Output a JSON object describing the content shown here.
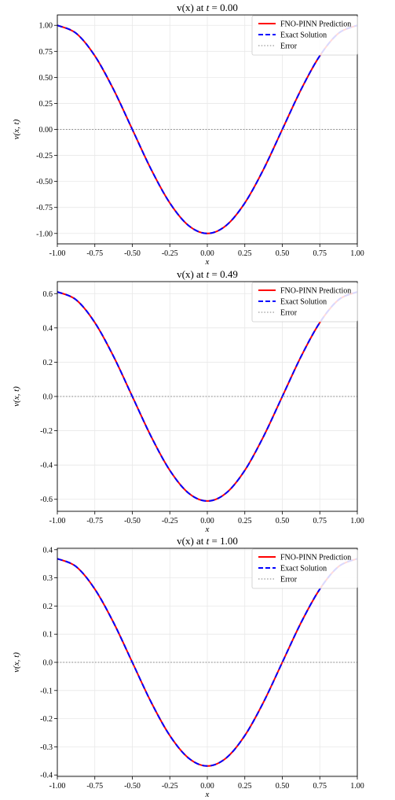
{
  "chart_data": [
    {
      "type": "line",
      "title": {
        "main": "v(x) at ",
        "t_symbol": "t",
        "equals": " = ",
        "t_value": "0.00"
      },
      "xlabel": "x",
      "ylabel": "v(x, t)",
      "xlim": [
        -1.0,
        1.0
      ],
      "ylim": [
        -1.1,
        1.1
      ],
      "xticks": [
        -1.0,
        -0.75,
        -0.5,
        -0.25,
        0.0,
        0.25,
        0.5,
        0.75,
        1.0
      ],
      "xtick_labels": [
        "-1.00",
        "-0.75",
        "-0.50",
        "-0.25",
        "0.00",
        "0.25",
        "0.50",
        "0.75",
        "1.00"
      ],
      "yticks": [
        1.0,
        0.75,
        0.5,
        0.25,
        0.0,
        -0.25,
        -0.5,
        -0.75,
        -1.0
      ],
      "ytick_labels": [
        "1.00",
        "0.75",
        "0.50",
        "0.25",
        "0.00",
        "-0.25",
        "-0.50",
        "-0.75",
        "-1.00"
      ],
      "grid": true,
      "legend_position": "top-right",
      "series": [
        {
          "name": "FNO-PINN Prediction",
          "style": "solid",
          "color": "#ff0000",
          "x": [
            -1.0,
            -0.875,
            -0.75,
            -0.625,
            -0.5,
            -0.375,
            -0.25,
            -0.125,
            0.0,
            0.125,
            0.25,
            0.375,
            0.5,
            0.625,
            0.75,
            0.875,
            1.0
          ],
          "y": [
            1.0,
            0.924,
            0.707,
            0.383,
            0.0,
            -0.383,
            -0.707,
            -0.924,
            -1.0,
            -0.924,
            -0.707,
            -0.383,
            0.0,
            0.383,
            0.707,
            0.924,
            1.0
          ]
        },
        {
          "name": "Exact Solution",
          "style": "dashed",
          "color": "#0000ff",
          "x": [
            -1.0,
            -0.875,
            -0.75,
            -0.625,
            -0.5,
            -0.375,
            -0.25,
            -0.125,
            0.0,
            0.125,
            0.25,
            0.375,
            0.5,
            0.625,
            0.75,
            0.875,
            1.0
          ],
          "y": [
            1.0,
            0.924,
            0.707,
            0.383,
            0.0,
            -0.383,
            -0.707,
            -0.924,
            -1.0,
            -0.924,
            -0.707,
            -0.383,
            0.0,
            0.383,
            0.707,
            0.924,
            1.0
          ]
        },
        {
          "name": "Error",
          "style": "dotted",
          "color": "#808080",
          "x": [
            -1.0,
            1.0
          ],
          "y": [
            0.0,
            0.0
          ]
        }
      ]
    },
    {
      "type": "line",
      "title": {
        "main": "v(x) at ",
        "t_symbol": "t",
        "equals": " = ",
        "t_value": "0.49"
      },
      "xlabel": "x",
      "ylabel": "v(x, t)",
      "xlim": [
        -1.0,
        1.0
      ],
      "ylim": [
        -0.67,
        0.67
      ],
      "xticks": [
        -1.0,
        -0.75,
        -0.5,
        -0.25,
        0.0,
        0.25,
        0.5,
        0.75,
        1.0
      ],
      "xtick_labels": [
        "-1.00",
        "-0.75",
        "-0.50",
        "-0.25",
        "0.00",
        "0.25",
        "0.50",
        "0.75",
        "1.00"
      ],
      "yticks": [
        0.6,
        0.4,
        0.2,
        0.0,
        -0.2,
        -0.4,
        -0.6
      ],
      "ytick_labels": [
        "0.6",
        "0.4",
        "0.2",
        "0.0",
        "-0.2",
        "-0.4",
        "-0.6"
      ],
      "grid": true,
      "legend_position": "top-right",
      "series": [
        {
          "name": "FNO-PINN Prediction",
          "style": "solid",
          "color": "#ff0000",
          "x": [
            -1.0,
            -0.875,
            -0.75,
            -0.625,
            -0.5,
            -0.375,
            -0.25,
            -0.125,
            0.0,
            0.125,
            0.25,
            0.375,
            0.5,
            0.625,
            0.75,
            0.875,
            1.0
          ],
          "y": [
            0.61,
            0.564,
            0.431,
            0.233,
            0.0,
            -0.233,
            -0.431,
            -0.564,
            -0.61,
            -0.564,
            -0.431,
            -0.233,
            0.0,
            0.233,
            0.431,
            0.564,
            0.61
          ]
        },
        {
          "name": "Exact Solution",
          "style": "dashed",
          "color": "#0000ff",
          "x": [
            -1.0,
            -0.875,
            -0.75,
            -0.625,
            -0.5,
            -0.375,
            -0.25,
            -0.125,
            0.0,
            0.125,
            0.25,
            0.375,
            0.5,
            0.625,
            0.75,
            0.875,
            1.0
          ],
          "y": [
            0.61,
            0.564,
            0.431,
            0.233,
            0.0,
            -0.233,
            -0.431,
            -0.564,
            -0.61,
            -0.564,
            -0.431,
            -0.233,
            0.0,
            0.233,
            0.431,
            0.564,
            0.61
          ]
        },
        {
          "name": "Error",
          "style": "dotted",
          "color": "#808080",
          "x": [
            -1.0,
            1.0
          ],
          "y": [
            0.0,
            0.0
          ]
        }
      ]
    },
    {
      "type": "line",
      "title": {
        "main": "v(x) at ",
        "t_symbol": "t",
        "equals": " = ",
        "t_value": "1.00"
      },
      "xlabel": "x",
      "ylabel": "v(x, t)",
      "xlim": [
        -1.0,
        1.0
      ],
      "ylim": [
        -0.405,
        0.405
      ],
      "xticks": [
        -1.0,
        -0.75,
        -0.5,
        -0.25,
        0.0,
        0.25,
        0.5,
        0.75,
        1.0
      ],
      "xtick_labels": [
        "-1.00",
        "-0.75",
        "-0.50",
        "-0.25",
        "0.00",
        "0.25",
        "0.50",
        "0.75",
        "1.00"
      ],
      "yticks": [
        0.4,
        0.3,
        0.2,
        0.1,
        0.0,
        -0.1,
        -0.2,
        -0.3,
        -0.4
      ],
      "ytick_labels": [
        "0.4",
        "0.3",
        "0.2",
        "0.1",
        "0.0",
        "-0.1",
        "-0.2",
        "-0.3",
        "-0.4"
      ],
      "grid": true,
      "legend_position": "top-right",
      "series": [
        {
          "name": "FNO-PINN Prediction",
          "style": "solid",
          "color": "#ff0000",
          "x": [
            -1.0,
            -0.875,
            -0.75,
            -0.625,
            -0.5,
            -0.375,
            -0.25,
            -0.125,
            0.0,
            0.125,
            0.25,
            0.375,
            0.5,
            0.625,
            0.75,
            0.875,
            1.0
          ],
          "y": [
            0.368,
            0.34,
            0.26,
            0.141,
            0.0,
            -0.141,
            -0.26,
            -0.34,
            -0.368,
            -0.34,
            -0.26,
            -0.141,
            0.0,
            0.141,
            0.26,
            0.34,
            0.368
          ]
        },
        {
          "name": "Exact Solution",
          "style": "dashed",
          "color": "#0000ff",
          "x": [
            -1.0,
            -0.875,
            -0.75,
            -0.625,
            -0.5,
            -0.375,
            -0.25,
            -0.125,
            0.0,
            0.125,
            0.25,
            0.375,
            0.5,
            0.625,
            0.75,
            0.875,
            1.0
          ],
          "y": [
            0.368,
            0.34,
            0.26,
            0.141,
            0.0,
            -0.141,
            -0.26,
            -0.34,
            -0.368,
            -0.34,
            -0.26,
            -0.141,
            0.0,
            0.141,
            0.26,
            0.34,
            0.368
          ]
        },
        {
          "name": "Error",
          "style": "dotted",
          "color": "#808080",
          "x": [
            -1.0,
            1.0
          ],
          "y": [
            0.0,
            0.0
          ]
        }
      ]
    }
  ]
}
